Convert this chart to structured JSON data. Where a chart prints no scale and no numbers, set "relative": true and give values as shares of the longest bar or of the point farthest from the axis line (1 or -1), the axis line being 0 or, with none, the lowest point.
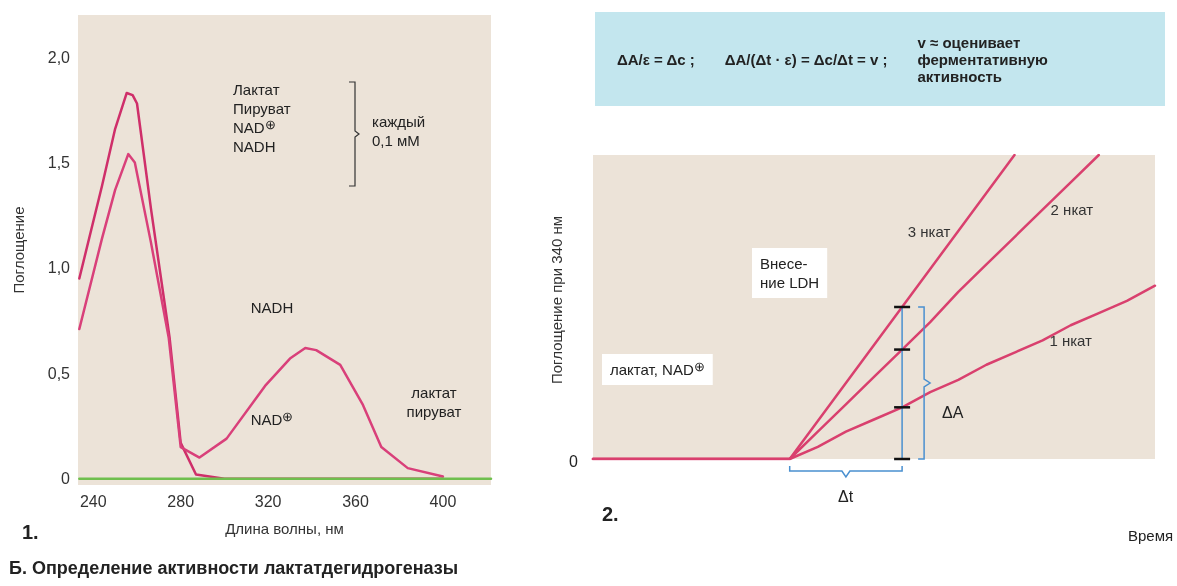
{
  "chart_data": [
    {
      "type": "line",
      "title": "Б. Определение активности лактатдегидрогеназы",
      "xlabel": "Длина волны, нм",
      "ylabel": "Поглощение",
      "xlim": [
        233,
        422
      ],
      "xticks": [
        240,
        280,
        320,
        360,
        400
      ],
      "ylim": [
        -0.03,
        2.2
      ],
      "yticks": [
        0,
        {
          "value": 0.5,
          "label": "0,5"
        },
        {
          "value": 1,
          "label": "1,0"
        },
        {
          "value": 1.5,
          "label": "1,5"
        },
        {
          "value": 2,
          "label": "2,0"
        }
      ],
      "grid": false,
      "marker": "none",
      "series": [
        {
          "color": "#cf2f6a",
          "x": [
            233.6,
            244,
            250,
            255.3,
            258,
            260,
            266.4,
            274.9,
            280,
            287,
            300,
            350,
            400
          ],
          "values": [
            0.95,
            1.39,
            1.66,
            1.83,
            1.82,
            1.78,
            1.28,
            0.67,
            0.17,
            0.02,
            0,
            0,
            0
          ]
        },
        {
          "color": "#d9407a",
          "x": [
            233.6,
            244,
            250,
            256,
            259,
            266.4,
            274.5,
            280,
            288.6,
            301,
            318.6,
            330,
            337,
            342,
            353,
            363.4,
            371.8,
            383.9,
            400
          ],
          "values": [
            0.71,
            1.14,
            1.37,
            1.54,
            1.5,
            1.12,
            0.67,
            0.15,
            0.1,
            0.19,
            0.44,
            0.57,
            0.62,
            0.61,
            0.54,
            0.35,
            0.15,
            0.05,
            0.01
          ]
        },
        {
          "color": "#6fbf4e",
          "x": [
            233.6,
            422
          ],
          "values": [
            0,
            0
          ]
        }
      ],
      "annotations": [
        "1.",
        "Лактат\nПируват\nNAD$^{⊕}$\nNADH",
        "каждый\n0,1 мМ",
        "NADH",
        "NAD$^{⊕}$",
        "лактат\nпируват"
      ]
    },
    {
      "type": "other",
      "annotations": [
        "ΔA/ε = Δc ;",
        "ΔA/(Δt · ε) = Δc/Δt = v ;",
        "v ≈ оценивает ферментативную активность"
      ]
    },
    {
      "type": "line",
      "relative": true,
      "xlabel": "Время",
      "ylabel": "Поглощение при 340 нм",
      "grid": false,
      "marker": "none",
      "categories": [
        null,
        null,
        null,
        null,
        null,
        null,
        null,
        null,
        null,
        null,
        null,
        null,
        null,
        null,
        null,
        null,
        null,
        null,
        null,
        null,
        null
      ],
      "series": [
        {
          "name": "1 нкат",
          "color": "#d9406e",
          "values": [
            0,
            0,
            0,
            0,
            0,
            0,
            0,
            0,
            0.04,
            0.09,
            0.13,
            0.17,
            0.22,
            0.26,
            0.31,
            0.35,
            0.39,
            0.44,
            0.48,
            0.52,
            0.57
          ]
        },
        {
          "name": "2 нкат",
          "color": "#d9406e",
          "values": [
            0,
            0,
            0,
            0,
            0,
            0,
            0,
            0,
            0.09,
            0.18,
            0.27,
            0.36,
            0.45,
            0.55,
            0.64,
            0.73,
            0.82,
            0.91,
            1.0,
            null,
            null
          ]
        },
        {
          "name": "3 нкат",
          "color": "#d9406e",
          "values": [
            0,
            0,
            0,
            0,
            0,
            0,
            0,
            0,
            0.125,
            0.25,
            0.375,
            0.5,
            0.625,
            0.75,
            0.875,
            1.0,
            null,
            null,
            null,
            null,
            null
          ]
        }
      ],
      "annotations": [
        "2.",
        "0",
        "лактат, NAD$^{⊕}$",
        "Внесе-\nние LDH",
        "ΔA",
        "Δt"
      ]
    }
  ]
}
